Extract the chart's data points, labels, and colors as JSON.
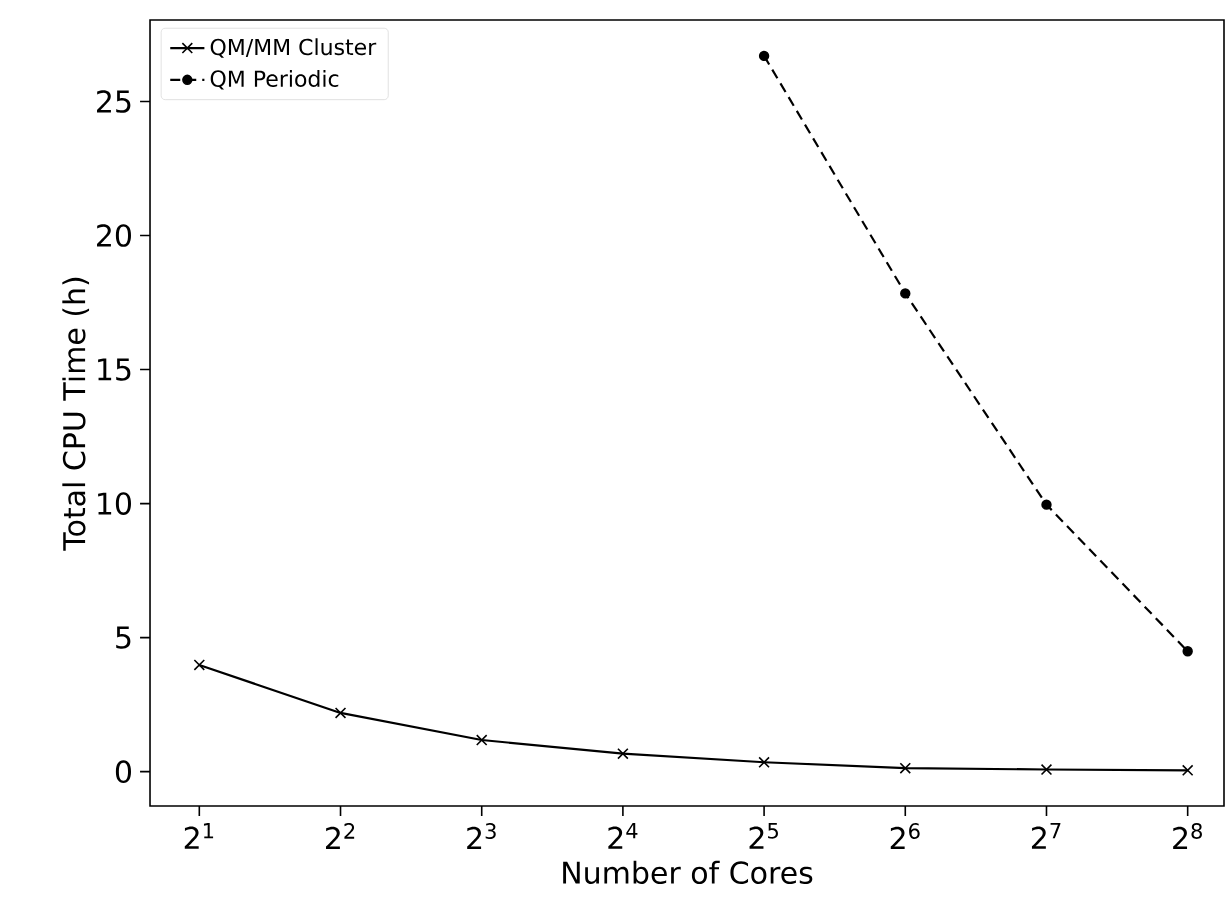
{
  "chart_data": {
    "type": "line",
    "xlabel": "Number of Cores",
    "ylabel": "Total CPU Time (h)",
    "log": "x",
    "x": [
      2,
      4,
      8,
      16,
      32,
      64,
      128,
      256
    ],
    "xlim": [
      1.57,
      306
    ],
    "xticks": [
      {
        "value": 2,
        "label": "2$^{1}$"
      },
      {
        "value": 4,
        "label": "2$^{2}$"
      },
      {
        "value": 8,
        "label": "2$^{3}$"
      },
      {
        "value": 16,
        "label": "2$^{4}$"
      },
      {
        "value": 32,
        "label": "2$^{5}$"
      },
      {
        "value": 64,
        "label": "2$^{6}$"
      },
      {
        "value": 128,
        "label": "2$^{7}$"
      },
      {
        "value": 256,
        "label": "2$^{8}$"
      }
    ],
    "ylim": [
      -1.28,
      28.04
    ],
    "yticks": [
      0,
      5,
      10,
      15,
      20,
      25
    ],
    "legend": "top left",
    "grid": false,
    "series": [
      {
        "name": "QM/MM Cluster",
        "color": "#000000",
        "marker": "cross",
        "line_style": "solid",
        "values": [
          3.98,
          2.19,
          1.18,
          0.67,
          0.35,
          0.13,
          0.08,
          0.05
        ]
      },
      {
        "name": "QM Periodic",
        "color": "#000000",
        "marker": "circle",
        "line_style": "dashed",
        "values": [
          null,
          null,
          null,
          null,
          26.7,
          17.84,
          9.96,
          4.49
        ]
      }
    ]
  }
}
